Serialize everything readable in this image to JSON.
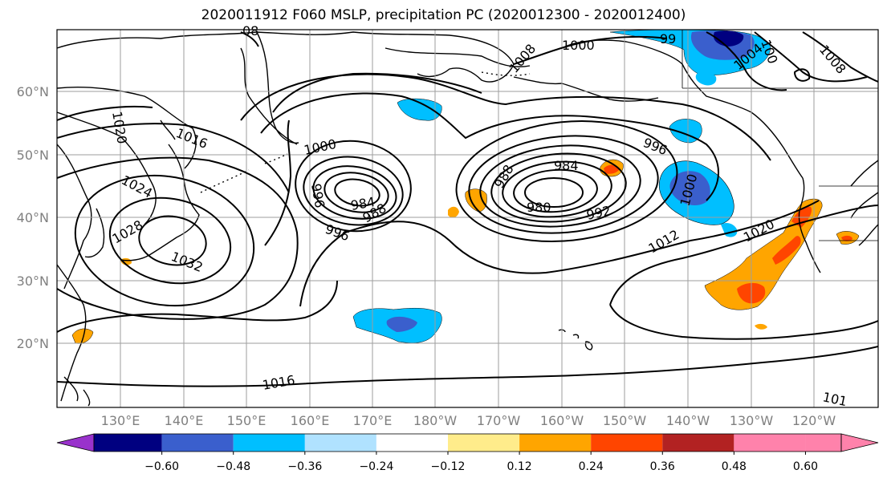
{
  "title": "2020011912 F060 MSLP, precipitation PC (2020012300 - 2020012400)",
  "lat_labels": [
    "60°N",
    "50°N",
    "40°N",
    "30°N",
    "20°N"
  ],
  "lon_labels": [
    "130°E",
    "140°E",
    "150°E",
    "160°E",
    "170°E",
    "180°W",
    "170°W",
    "160°W",
    "150°W",
    "140°W",
    "130°W",
    "120°W"
  ],
  "contour_labels": {
    "c1000_top": "1000",
    "c1000_low": "1000",
    "c1000_east": "1000",
    "c1016_west": "1016",
    "c1020_west": "1020",
    "c1024": "1024",
    "c1028": "1028",
    "c1032": "1032",
    "c996_west": "996",
    "c984_west": "984",
    "c988_west": "988",
    "c992_west": "992",
    "c988_east": "988",
    "c984_east": "984",
    "c980": "980",
    "c992_east": "992",
    "c996_east": "996",
    "c1012": "1012",
    "c1020_east": "1020",
    "c1016_south": "1016",
    "c1016_se": "101",
    "c99_top": "99",
    "c100_ne": "100",
    "c1004": "1004",
    "c1008": "1008",
    "c08_top": "08",
    "c1008_small": "1008"
  },
  "colorbar": {
    "ticks": [
      "−0.60",
      "−0.48",
      "−0.36",
      "−0.24",
      "−0.12",
      "0.12",
      "0.24",
      "0.36",
      "0.48",
      "0.60"
    ],
    "colors": [
      "#9932cc",
      "#000080",
      "#3a5fcd",
      "#00bfff",
      "#b0e2ff",
      "#ffffff",
      "#ffec8b",
      "#ffa500",
      "#ff4500",
      "#b22222",
      "#ff82ab",
      "#ff82ab"
    ]
  }
}
